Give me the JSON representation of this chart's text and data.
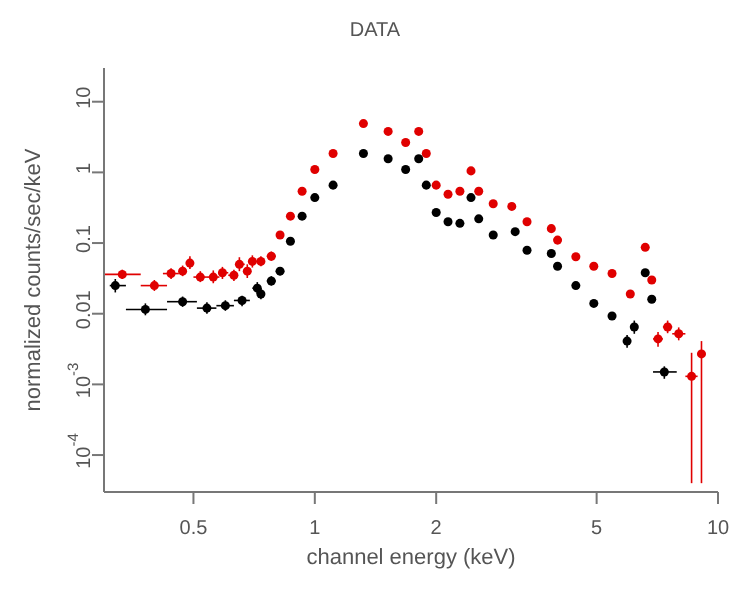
{
  "chart_data": {
    "type": "scatter",
    "title": "DATA",
    "xlabel": "channel energy (keV)",
    "ylabel": "normalized counts/sec/keV",
    "log": "xy",
    "grid": false,
    "legend": false,
    "xlim": [
      0.3,
      10
    ],
    "xticks": [
      0.5,
      1,
      2,
      5,
      10
    ],
    "ylim": [
      3e-05,
      30
    ],
    "yticks": [
      {
        "value": 0.0001,
        "label": "10$^{-4}$"
      },
      {
        "value": 0.001,
        "label": "10$^{-3}$"
      },
      0.01,
      0.1,
      1,
      10
    ],
    "series": [
      {
        "color": "#e00000",
        "x": [
          0.333,
          0.4,
          0.44,
          0.47,
          0.49,
          0.52,
          0.56,
          0.59,
          0.63,
          0.65,
          0.68,
          0.7,
          0.735,
          0.78,
          0.82,
          0.87,
          0.93,
          1.0,
          1.11,
          1.32,
          1.52,
          1.68,
          1.81,
          1.89,
          2.0,
          2.14,
          2.29,
          2.44,
          2.55,
          2.77,
          3.08,
          3.36,
          3.86,
          4.0,
          4.44,
          4.92,
          5.46,
          6.06,
          6.6,
          6.85,
          7.1,
          7.5,
          7.99,
          8.6,
          9.1
        ],
        "values": [
          0.036,
          0.025,
          0.037,
          0.04,
          0.052,
          0.033,
          0.033,
          0.038,
          0.035,
          0.05,
          0.04,
          0.055,
          0.055,
          0.065,
          0.13,
          0.24,
          0.54,
          1.1,
          1.85,
          4.9,
          3.8,
          2.65,
          3.8,
          1.85,
          0.66,
          0.49,
          0.54,
          1.05,
          0.54,
          0.36,
          0.33,
          0.2,
          0.16,
          0.11,
          0.064,
          0.047,
          0.037,
          0.019,
          0.087,
          0.03,
          0.0044,
          0.0065,
          0.0052,
          0.0013,
          0.0027
        ],
        "errors": [
          [
            0.031,
            0.042
          ],
          [
            0.021,
            0.03
          ],
          [
            0.031,
            0.044
          ],
          [
            0.034,
            0.048
          ],
          [
            0.043,
            0.065
          ],
          [
            0.028,
            0.04
          ],
          [
            0.027,
            0.041
          ],
          [
            0.031,
            0.046
          ],
          [
            0.029,
            0.042
          ],
          [
            0.04,
            0.063
          ],
          [
            0.032,
            0.05
          ],
          [
            0.045,
            0.067
          ],
          [
            0.047,
            0.065
          ],
          [
            0.056,
            0.076
          ],
          null,
          null,
          null,
          null,
          null,
          null,
          null,
          null,
          null,
          null,
          null,
          null,
          null,
          null,
          null,
          null,
          null,
          null,
          null,
          null,
          null,
          null,
          null,
          null,
          null,
          null,
          [
            0.0034,
            0.0055
          ],
          [
            0.0053,
            0.008
          ],
          [
            0.0042,
            0.0064
          ],
          [
            4e-05,
            0.0028
          ],
          [
            4e-05,
            0.0041
          ]
        ],
        "xerrors": [
          [
            0.3,
            0.37
          ],
          [
            0.37,
            0.43
          ],
          [
            0.42,
            0.46
          ],
          [
            0.46,
            0.48
          ],
          [
            0.48,
            0.5
          ],
          [
            0.5,
            0.54
          ],
          [
            0.54,
            0.58
          ],
          [
            0.58,
            0.61
          ],
          [
            0.61,
            0.64
          ],
          [
            0.64,
            0.67
          ],
          [
            0.67,
            0.69
          ],
          [
            0.69,
            0.72
          ],
          [
            0.72,
            0.75
          ],
          [
            0.76,
            0.8
          ],
          null,
          null,
          null,
          null,
          null,
          null,
          null,
          null,
          null,
          null,
          null,
          null,
          null,
          null,
          null,
          null,
          null,
          null,
          null,
          null,
          null,
          null,
          null,
          null,
          null,
          null,
          [
            6.9,
            7.3
          ],
          [
            7.3,
            7.7
          ],
          [
            7.7,
            8.3
          ],
          [
            8.3,
            8.9
          ],
          [
            8.9,
            9.3
          ]
        ]
      },
      {
        "color": "#000000",
        "x": [
          0.32,
          0.38,
          0.47,
          0.54,
          0.6,
          0.66,
          0.72,
          0.735,
          0.78,
          0.82,
          0.87,
          0.93,
          1.0,
          1.11,
          1.32,
          1.52,
          1.68,
          1.81,
          1.89,
          2.0,
          2.14,
          2.29,
          2.44,
          2.55,
          2.77,
          3.14,
          3.36,
          3.86,
          4.0,
          4.44,
          4.92,
          5.46,
          5.95,
          6.2,
          6.6,
          6.85,
          7.36
        ],
        "values": [
          0.025,
          0.0115,
          0.0148,
          0.012,
          0.013,
          0.0154,
          0.023,
          0.019,
          0.029,
          0.04,
          0.106,
          0.24,
          0.44,
          0.66,
          1.85,
          1.56,
          1.1,
          1.56,
          0.66,
          0.27,
          0.2,
          0.19,
          0.44,
          0.22,
          0.13,
          0.145,
          0.079,
          0.071,
          0.047,
          0.025,
          0.014,
          0.0093,
          0.0041,
          0.0065,
          0.038,
          0.016,
          0.0015
        ],
        "errors": [
          [
            0.02,
            0.031
          ],
          [
            0.0095,
            0.014
          ],
          [
            0.0125,
            0.0175
          ],
          [
            0.01,
            0.0145
          ],
          [
            0.011,
            0.0155
          ],
          [
            0.0128,
            0.018
          ],
          [
            0.019,
            0.028
          ],
          [
            0.016,
            0.023
          ],
          [
            0.025,
            0.034
          ],
          [
            0.035,
            0.046
          ],
          null,
          null,
          null,
          null,
          null,
          null,
          null,
          null,
          null,
          null,
          null,
          null,
          null,
          null,
          null,
          null,
          null,
          null,
          null,
          null,
          null,
          null,
          [
            0.0033,
            0.005
          ],
          [
            0.0052,
            0.008
          ],
          null,
          null,
          [
            0.0012,
            0.0018
          ]
        ],
        "xerrors": [
          [
            0.31,
            0.34
          ],
          [
            0.34,
            0.43
          ],
          [
            0.43,
            0.51
          ],
          [
            0.51,
            0.57
          ],
          [
            0.57,
            0.63
          ],
          [
            0.63,
            0.69
          ],
          [
            0.7,
            0.73
          ],
          [
            0.73,
            0.75
          ],
          [
            0.76,
            0.8
          ],
          [
            0.8,
            0.84
          ],
          null,
          null,
          null,
          null,
          null,
          null,
          null,
          null,
          null,
          null,
          null,
          null,
          null,
          null,
          null,
          null,
          null,
          null,
          null,
          null,
          null,
          null,
          null,
          null,
          null,
          null,
          [
            6.9,
            7.9
          ]
        ]
      }
    ]
  }
}
